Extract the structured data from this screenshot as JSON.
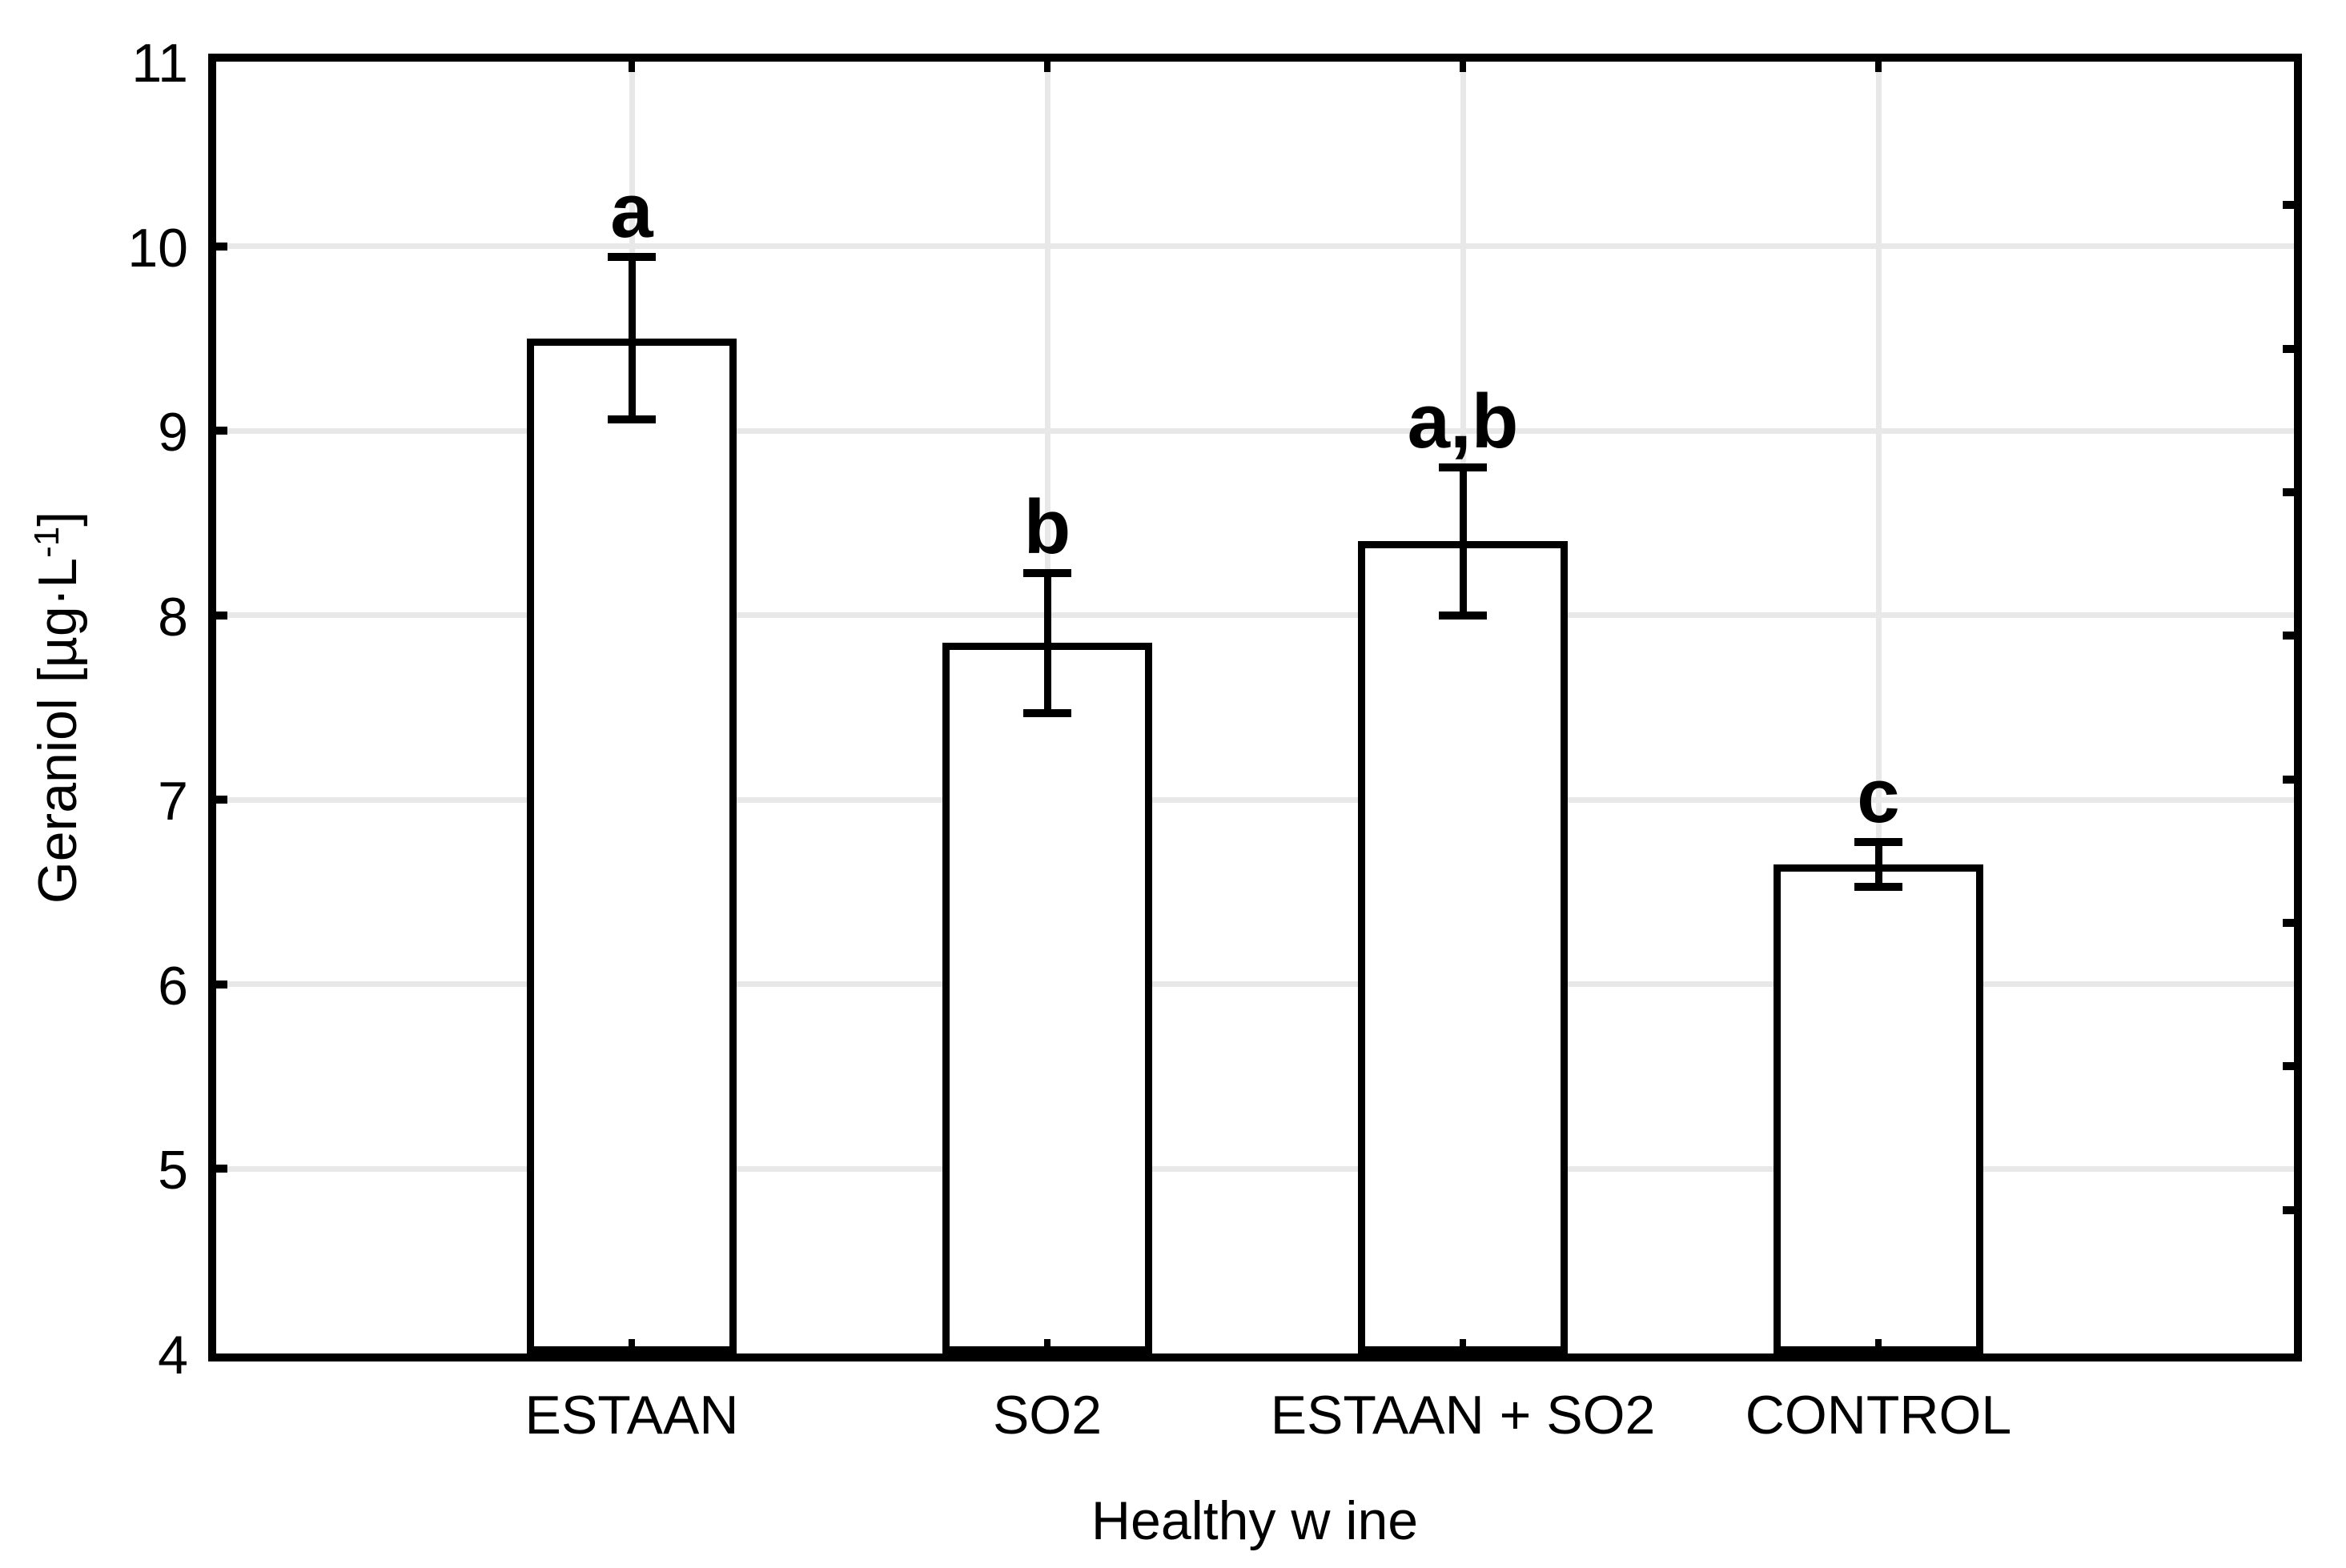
{
  "chart_data": {
    "type": "bar",
    "title": "",
    "xlabel": "Healthy w ine",
    "ylabel": {
      "text": "Geraniol [µg·L",
      "superscript": "-1",
      "close": "]"
    },
    "categories": [
      "ESTAAN",
      "SO2",
      "ESTAAN + SO2",
      "CONTROL"
    ],
    "series": [
      {
        "name": "Geraniol",
        "values": [
          9.5,
          7.85,
          8.4,
          6.65
        ],
        "errors": [
          0.44,
          0.38,
          0.4,
          0.12
        ]
      }
    ],
    "significance_letters": [
      "a",
      "b",
      "a,b",
      "c"
    ],
    "ylim": [
      4,
      11
    ],
    "yticks": [
      4,
      5,
      6,
      7,
      8,
      9,
      10,
      11
    ],
    "gridline_values": [
      5,
      6,
      7,
      8,
      9,
      10
    ],
    "right_axis_divisions": 9,
    "grid": {
      "horizontal": true,
      "vertical_at_categories": true
    },
    "legend": "none",
    "colors": {
      "background": "#ffffff",
      "bar_fill": "#ffffff",
      "line": "#000000",
      "gridline": "#e8e8e8"
    }
  }
}
